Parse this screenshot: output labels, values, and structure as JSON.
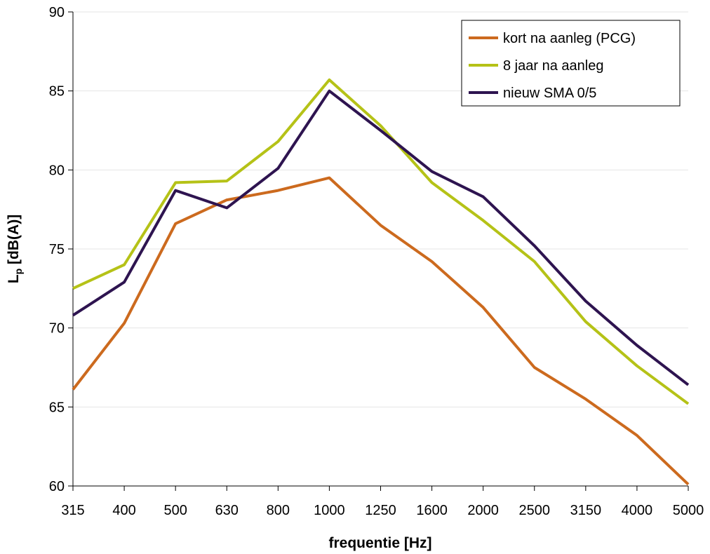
{
  "chart_data": {
    "type": "line",
    "title": "",
    "xlabel": "frequentie [Hz]",
    "ylabel": {
      "main": "L",
      "sub": "p",
      "rest": " [dB(A)]"
    },
    "categories": [
      "315",
      "400",
      "500",
      "630",
      "800",
      "1000",
      "1250",
      "1600",
      "2000",
      "2500",
      "3150",
      "4000",
      "5000"
    ],
    "ylim": [
      60,
      90
    ],
    "yticks": [
      "60",
      "65",
      "70",
      "75",
      "80",
      "85",
      "90"
    ],
    "grid": "horizontal",
    "legend_position": "top-right",
    "series": [
      {
        "name": "kort na aanleg (PCG)",
        "color": "#cc6a1e",
        "values": [
          66.1,
          70.3,
          76.6,
          78.1,
          78.7,
          79.5,
          76.5,
          74.2,
          71.3,
          67.5,
          65.5,
          63.2,
          60.1
        ]
      },
      {
        "name": "8 jaar na aanleg",
        "color": "#b5c217",
        "values": [
          72.5,
          74.0,
          79.2,
          79.3,
          81.8,
          85.7,
          82.8,
          79.2,
          76.8,
          74.2,
          70.4,
          67.6,
          65.2
        ]
      },
      {
        "name": "nieuw SMA 0/5",
        "color": "#2e1450",
        "values": [
          70.8,
          72.9,
          78.7,
          77.6,
          80.1,
          85.0,
          82.5,
          79.9,
          78.3,
          75.2,
          71.7,
          68.9,
          66.4
        ]
      }
    ]
  }
}
